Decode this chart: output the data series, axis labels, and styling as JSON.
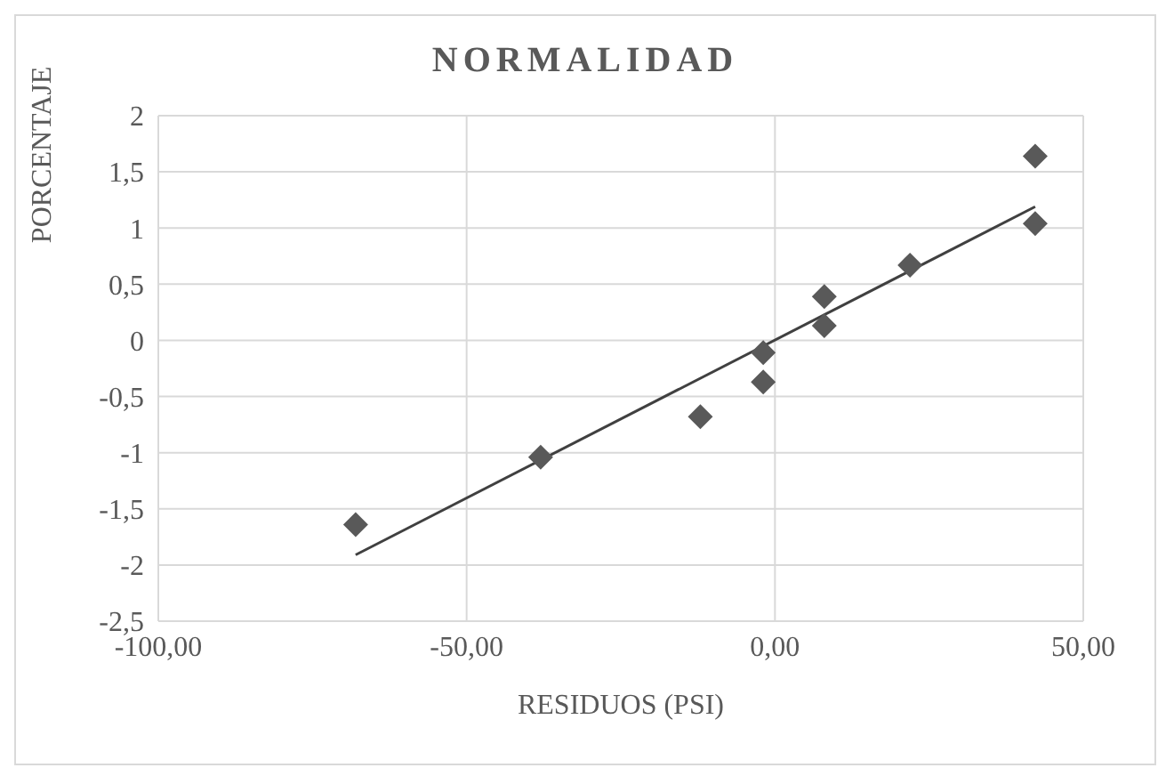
{
  "chart_data": {
    "type": "scatter",
    "title": "NORMALIDAD",
    "xlabel": "RESIDUOS (PSI)",
    "ylabel": "PORCENTAJE",
    "series": [
      {
        "color": "#595959",
        "marker": "diamond",
        "x": [
          -68,
          -38,
          -12.1,
          -1.9,
          -1.9,
          8,
          8,
          21.9,
          42.2,
          42.2
        ],
        "values": [
          -1.64,
          -1.04,
          -0.68,
          -0.37,
          -0.11,
          0.13,
          0.39,
          0.67,
          1.04,
          1.64
        ]
      },
      {
        "type": "line",
        "color": "#404040",
        "marker": "none",
        "x": [
          -68,
          42.2
        ],
        "values": [
          -1.91,
          1.19
        ]
      }
    ],
    "xlim": [
      -100,
      50
    ],
    "xticks": [
      {
        "value": -100,
        "label": "-100,00"
      },
      {
        "value": -50,
        "label": "-50,00"
      },
      {
        "value": 0,
        "label": "0,00"
      },
      {
        "value": 50,
        "label": "50,00"
      }
    ],
    "ylim": [
      -2.5,
      2
    ],
    "yticks": [
      {
        "value": -2.5,
        "label": "-2,5"
      },
      {
        "value": -2,
        "label": "-2"
      },
      {
        "value": -1.5,
        "label": "-1,5"
      },
      {
        "value": -1,
        "label": "-1"
      },
      {
        "value": -0.5,
        "label": "-0,5"
      },
      {
        "value": 0,
        "label": "0"
      },
      {
        "value": 0.5,
        "label": "0,5"
      },
      {
        "value": 1,
        "label": "1"
      },
      {
        "value": 1.5,
        "label": "1,5"
      },
      {
        "value": 2,
        "label": "2"
      }
    ],
    "grid": true
  }
}
